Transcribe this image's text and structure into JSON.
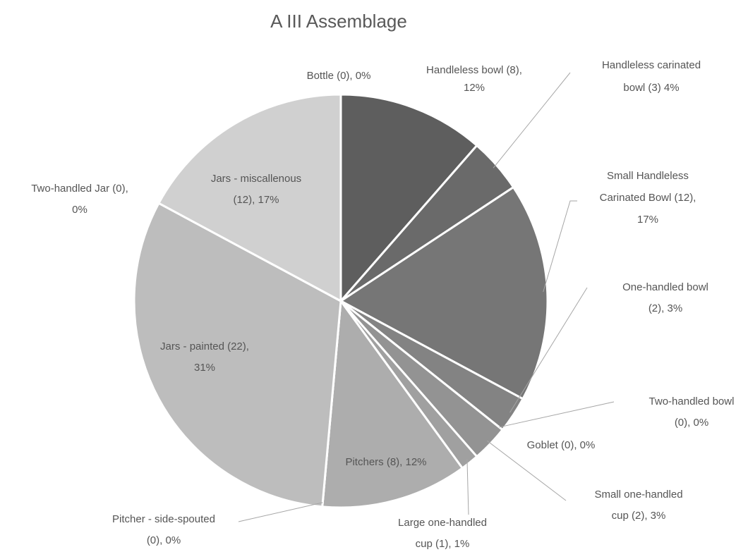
{
  "chart_data": {
    "type": "pie",
    "title": "A III Assemblage",
    "values": [
      8,
      3,
      12,
      2,
      0,
      0,
      2,
      1,
      8,
      0,
      22,
      0,
      12,
      0
    ],
    "value_labels": [
      [
        "Handleless bowl (8),",
        "12%"
      ],
      [
        "Handleless carinated",
        "bowl (3) 4%"
      ],
      [
        "Small Handleless",
        "Carinated Bowl (12),",
        "17%"
      ],
      [
        "One-handled bowl",
        "(2), 3%"
      ],
      [
        "Two-handled bowl",
        "(0), 0%"
      ],
      [
        "Goblet (0), 0%"
      ],
      [
        "Small one-handled",
        "cup (2), 3%"
      ],
      [
        "Large one-handled",
        "cup  (1), 1%"
      ],
      [
        "Pitchers  (8), 12%"
      ],
      [
        "Pitcher - side-spouted",
        "(0), 0%"
      ],
      [
        "Jars - painted (22),",
        "31%"
      ],
      [
        "Two-handled Jar (0),",
        "0%"
      ],
      [
        "Jars - miscallenous",
        "(12), 17%"
      ],
      [
        "Bottle (0), 0%"
      ]
    ],
    "colors": [
      "#5e5e5e",
      "#6a6a6a",
      "#767676",
      "#838383",
      "#8c8c8c",
      "#8f8f8f",
      "#939393",
      "#a0a0a0",
      "#adadad",
      "#b4b4b4",
      "#bdbdbd",
      "#c6c6c6",
      "#d0d0d0",
      "#d6d6d6"
    ]
  }
}
